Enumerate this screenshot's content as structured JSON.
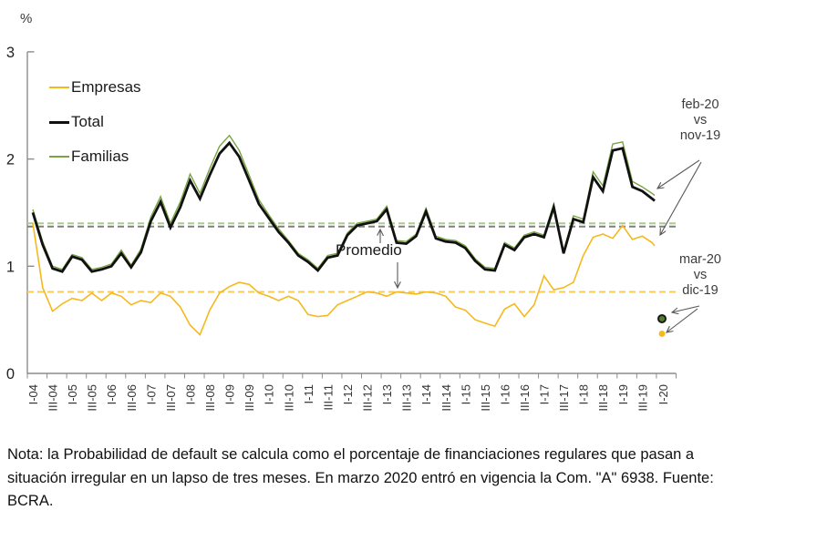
{
  "unit_label": "%",
  "note": {
    "text": "Nota: la Probabilidad de default se calcula como el porcentaje de financiaciones regulares que pasan a situación irregular en un lapso de tres meses. En marzo 2020 entró en vigencia la Com. \"A\" 6938. Fuente: BCRA."
  },
  "chart_data": {
    "type": "line",
    "title": "",
    "ylabel": "%",
    "y_axis": {
      "ticks": [
        0,
        1,
        2,
        3
      ],
      "range": [
        0,
        3
      ],
      "grid": false
    },
    "x_labels": [
      "I-04",
      "III-04",
      "I-05",
      "III-05",
      "I-06",
      "III-06",
      "I-07",
      "III-07",
      "I-08",
      "III-08",
      "I-09",
      "III-09",
      "I-10",
      "III-10",
      "I-11",
      "III-11",
      "I-12",
      "III-12",
      "I-13",
      "III-13",
      "I-14",
      "III-14",
      "I-15",
      "III-15",
      "I-16",
      "III-16",
      "I-17",
      "III-17",
      "I-18",
      "III-18",
      "I-19",
      "III-19",
      "I-20"
    ],
    "x_frequency": "quarterly from I-04 to IV-19 plus final monthly point feb-20; separate dots for mar-20",
    "legend_position": "top-left inside plot",
    "series": [
      {
        "name": "Empresas",
        "color": "#F5B91E",
        "dash_color": "#F8CC5A",
        "width": 1.6,
        "values": [
          1.4,
          0.8,
          0.58,
          0.65,
          0.7,
          0.68,
          0.75,
          0.68,
          0.75,
          0.72,
          0.64,
          0.68,
          0.66,
          0.75,
          0.72,
          0.62,
          0.45,
          0.36,
          0.59,
          0.75,
          0.81,
          0.85,
          0.83,
          0.75,
          0.72,
          0.68,
          0.72,
          0.68,
          0.55,
          0.53,
          0.54,
          0.64,
          0.68,
          0.72,
          0.76,
          0.75,
          0.72,
          0.76,
          0.75,
          0.74,
          0.76,
          0.75,
          0.72,
          0.62,
          0.59,
          0.5,
          0.47,
          0.44,
          0.6,
          0.65,
          0.53,
          0.64,
          0.91,
          0.78,
          0.8,
          0.85,
          1.1,
          1.27,
          1.3,
          1.26,
          1.38,
          1.25,
          1.28,
          1.22,
          1.19
        ]
      },
      {
        "name": "Total",
        "color": "#111111",
        "dash_color": "#7F7F7F",
        "width": 2.8,
        "values": [
          1.5,
          1.2,
          0.98,
          0.95,
          1.09,
          1.06,
          0.95,
          0.97,
          1.0,
          1.12,
          0.99,
          1.13,
          1.42,
          1.6,
          1.36,
          1.55,
          1.8,
          1.63,
          1.85,
          2.05,
          2.15,
          2.02,
          1.8,
          1.58,
          1.45,
          1.32,
          1.22,
          1.1,
          1.04,
          0.96,
          1.08,
          1.1,
          1.29,
          1.38,
          1.4,
          1.42,
          1.53,
          1.22,
          1.21,
          1.28,
          1.51,
          1.26,
          1.23,
          1.22,
          1.17,
          1.05,
          0.97,
          0.96,
          1.2,
          1.15,
          1.27,
          1.3,
          1.27,
          1.55,
          1.12,
          1.44,
          1.41,
          1.83,
          1.7,
          2.08,
          2.1,
          1.74,
          1.7,
          1.63,
          1.61
        ]
      },
      {
        "name": "Familias",
        "color": "#79A344",
        "dash_color": "#ACCB8B",
        "width": 1.4,
        "values": [
          1.53,
          1.23,
          1.0,
          0.97,
          1.11,
          1.08,
          0.97,
          0.99,
          1.02,
          1.15,
          1.01,
          1.16,
          1.46,
          1.65,
          1.4,
          1.6,
          1.86,
          1.68,
          1.91,
          2.12,
          2.22,
          2.08,
          1.85,
          1.62,
          1.48,
          1.35,
          1.24,
          1.12,
          1.06,
          0.98,
          1.1,
          1.12,
          1.31,
          1.4,
          1.42,
          1.44,
          1.56,
          1.24,
          1.23,
          1.3,
          1.54,
          1.28,
          1.25,
          1.24,
          1.19,
          1.07,
          0.99,
          0.98,
          1.22,
          1.17,
          1.29,
          1.32,
          1.29,
          1.58,
          1.14,
          1.47,
          1.44,
          1.88,
          1.75,
          2.14,
          2.16,
          1.79,
          1.74,
          1.68,
          1.66
        ]
      }
    ],
    "averages": {
      "label": "Promedio",
      "empresas": 0.76,
      "total": 1.37,
      "familias": 1.4
    },
    "mar20_points": {
      "total_familias": 0.51,
      "empresas": 0.37
    },
    "annotations": {
      "feb": [
        "feb-20",
        "vs",
        "nov-19"
      ],
      "mar": [
        "mar-20",
        "vs",
        "dic-19"
      ],
      "promedio": "Promedio"
    }
  }
}
